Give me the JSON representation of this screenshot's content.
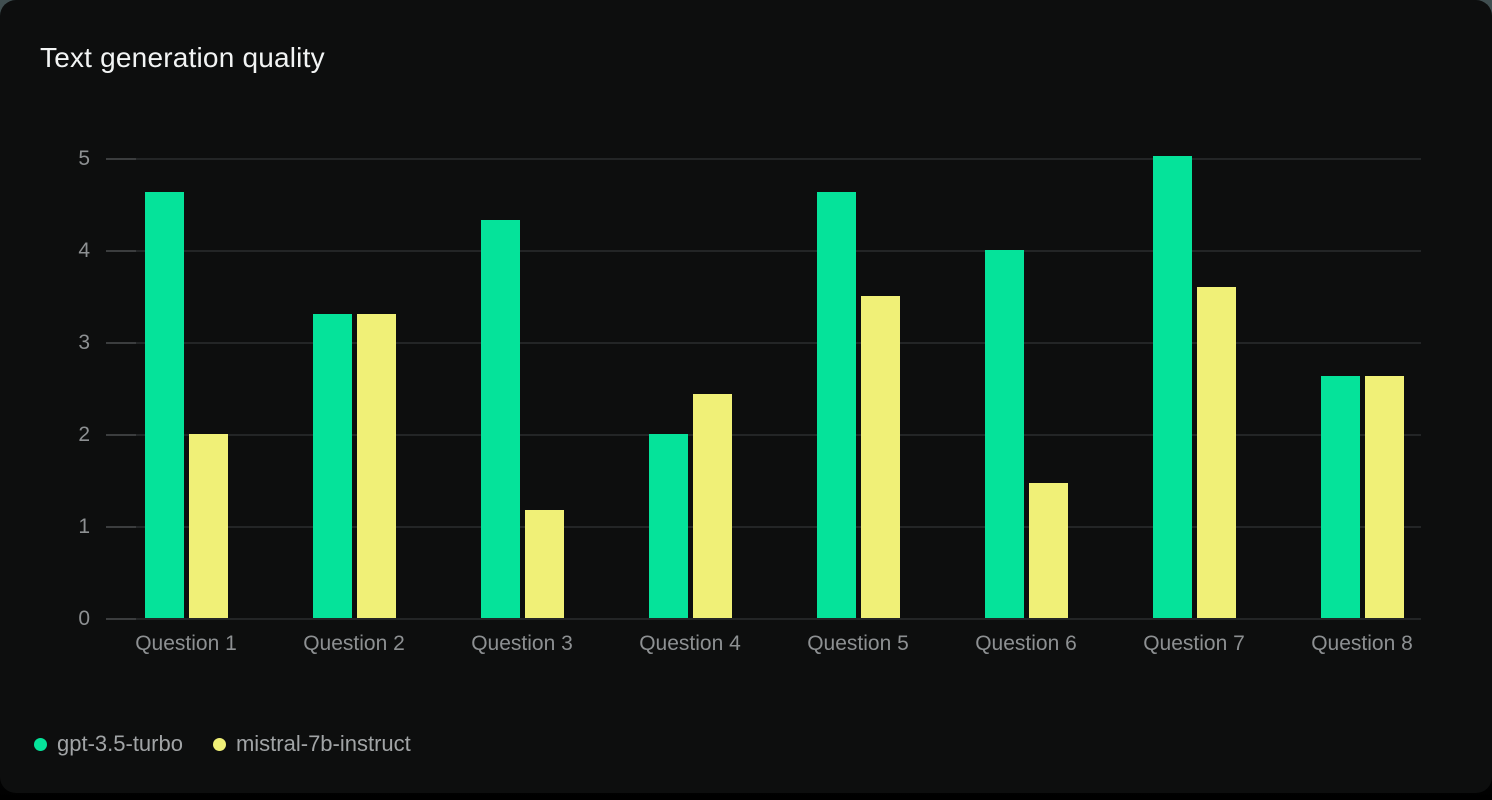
{
  "chart_data": {
    "type": "bar",
    "title": "Text generation quality",
    "categories": [
      "Question 1",
      "Question 2",
      "Question 3",
      "Question 4",
      "Question 5",
      "Question 6",
      "Question 7",
      "Question 8"
    ],
    "series": [
      {
        "name": "gpt-3.5-turbo",
        "color": "#05e39a",
        "values": [
          4.63,
          3.3,
          4.33,
          2.0,
          4.63,
          4.0,
          5.02,
          2.63
        ]
      },
      {
        "name": "mistral-7b-instruct",
        "color": "#f0f077",
        "values": [
          2.0,
          3.3,
          1.17,
          2.43,
          3.5,
          1.47,
          3.6,
          2.63
        ]
      }
    ],
    "xlabel": "",
    "ylabel": "",
    "ylim": [
      0,
      5
    ],
    "yticks": [
      0,
      1,
      2,
      3,
      4,
      5
    ],
    "grid": true,
    "legend_position": "bottom-left"
  },
  "theme": {
    "backdrop_top": "#404e50",
    "page_bottom": "#000000",
    "card_bg": "#0d0e0e",
    "title_color": "#f2f4f4",
    "axis_label_color": "#8d9092",
    "legend_text_color": "#a1a4a6",
    "gridline_color": "#232526",
    "tick_color": "#3b3d3e"
  }
}
